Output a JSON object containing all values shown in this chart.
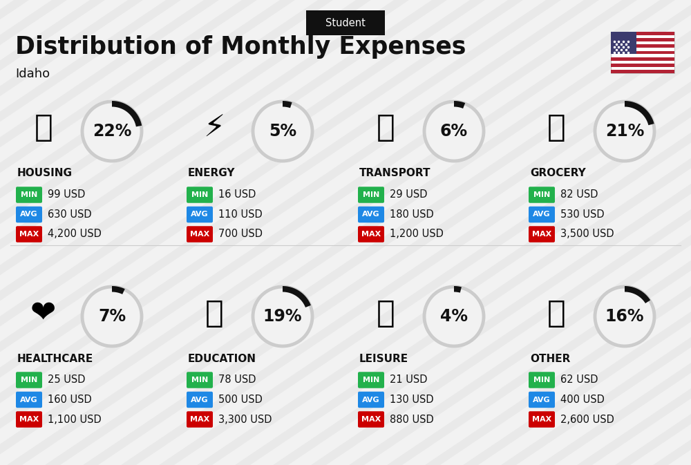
{
  "title": "Distribution of Monthly Expenses",
  "subtitle": "Idaho",
  "header_label": "Student",
  "bg_color": "#f2f2f2",
  "categories": [
    {
      "name": "HOUSING",
      "pct": 22,
      "min": "99 USD",
      "avg": "630 USD",
      "max": "4,200 USD",
      "icon": "🏢",
      "row": 0,
      "col": 0
    },
    {
      "name": "ENERGY",
      "pct": 5,
      "min": "16 USD",
      "avg": "110 USD",
      "max": "700 USD",
      "icon": "⚡",
      "row": 0,
      "col": 1
    },
    {
      "name": "TRANSPORT",
      "pct": 6,
      "min": "29 USD",
      "avg": "180 USD",
      "max": "1,200 USD",
      "icon": "🚌",
      "row": 0,
      "col": 2
    },
    {
      "name": "GROCERY",
      "pct": 21,
      "min": "82 USD",
      "avg": "530 USD",
      "max": "3,500 USD",
      "icon": "🛒",
      "row": 0,
      "col": 3
    },
    {
      "name": "HEALTHCARE",
      "pct": 7,
      "min": "25 USD",
      "avg": "160 USD",
      "max": "1,100 USD",
      "icon": "❤️",
      "row": 1,
      "col": 0
    },
    {
      "name": "EDUCATION",
      "pct": 19,
      "min": "78 USD",
      "avg": "500 USD",
      "max": "3,300 USD",
      "icon": "🎓",
      "row": 1,
      "col": 1
    },
    {
      "name": "LEISURE",
      "pct": 4,
      "min": "21 USD",
      "avg": "130 USD",
      "max": "880 USD",
      "icon": "🛍️",
      "row": 1,
      "col": 2
    },
    {
      "name": "OTHER",
      "pct": 16,
      "min": "62 USD",
      "avg": "400 USD",
      "max": "2,600 USD",
      "icon": "👜",
      "row": 1,
      "col": 3
    }
  ],
  "min_color": "#22b14c",
  "avg_color": "#1e88e5",
  "max_color": "#cc0000",
  "circle_color": "#cccccc",
  "circle_fill": "#f2f2f2",
  "arc_color": "#111111",
  "text_color": "#111111",
  "name_fontsize": 11,
  "pct_fontsize": 17,
  "badge_fontsize": 8,
  "value_fontsize": 10.5,
  "icon_fontsize": 32
}
